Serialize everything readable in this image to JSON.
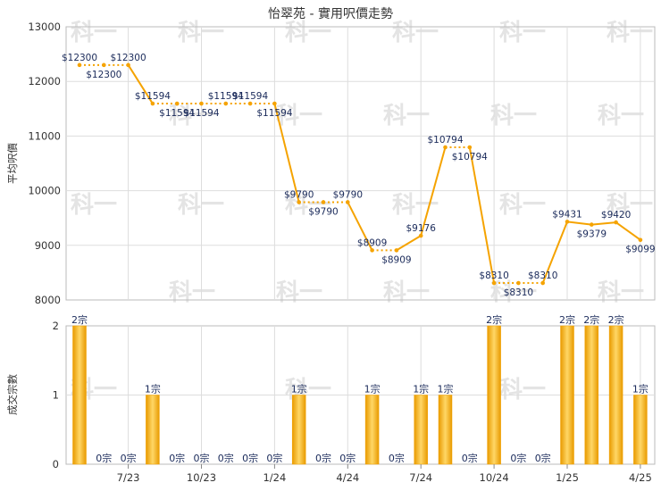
{
  "chart_data": [
    {
      "type": "line",
      "title": "怡翠苑 - 實用呎價走勢",
      "ylabel": "平均呎價",
      "ylim": [
        8000,
        13000
      ],
      "yticks": [
        8000,
        9000,
        10000,
        11000,
        12000,
        13000
      ],
      "line_color": "#f5a300",
      "points": [
        {
          "i": 0,
          "y": 12300,
          "label": "$12300"
        },
        {
          "i": 1,
          "y": 12300,
          "label": "$12300"
        },
        {
          "i": 2,
          "y": 12300,
          "label": "$12300"
        },
        {
          "i": 3,
          "y": 11594,
          "label": "$11594"
        },
        {
          "i": 4,
          "y": 11594,
          "label": "$11594"
        },
        {
          "i": 5,
          "y": 11594,
          "label": "$11594"
        },
        {
          "i": 6,
          "y": 11594,
          "label": "$11594"
        },
        {
          "i": 7,
          "y": 11594,
          "label": "$11594"
        },
        {
          "i": 8,
          "y": 11594,
          "label": "$11594"
        },
        {
          "i": 9,
          "y": 9790,
          "label": "$9790"
        },
        {
          "i": 10,
          "y": 9790,
          "label": "$9790"
        },
        {
          "i": 11,
          "y": 9790,
          "label": "$9790"
        },
        {
          "i": 12,
          "y": 8909,
          "label": "$8909"
        },
        {
          "i": 13,
          "y": 8909,
          "label": "$8909"
        },
        {
          "i": 14,
          "y": 9176,
          "label": "$9176"
        },
        {
          "i": 15,
          "y": 10794,
          "label": "$10794"
        },
        {
          "i": 16,
          "y": 10794,
          "label": "$10794"
        },
        {
          "i": 17,
          "y": 8310,
          "label": "$8310"
        },
        {
          "i": 18,
          "y": 8310,
          "label": "$8310"
        },
        {
          "i": 19,
          "y": 8310,
          "label": "$8310"
        },
        {
          "i": 20,
          "y": 9431,
          "label": "$9431"
        },
        {
          "i": 21,
          "y": 9379,
          "label": "$9379"
        },
        {
          "i": 22,
          "y": 9420,
          "label": "$9420"
        },
        {
          "i": 23,
          "y": 9099,
          "label": "$9099"
        }
      ]
    },
    {
      "type": "bar",
      "ylabel": "成交宗數",
      "ylim": [
        0,
        2
      ],
      "yticks": [
        0,
        1,
        2
      ],
      "bar_color": "#f5a300",
      "values": [
        2,
        0,
        0,
        1,
        0,
        0,
        0,
        0,
        0,
        1,
        0,
        0,
        1,
        0,
        1,
        1,
        0,
        2,
        0,
        0,
        2,
        2,
        2,
        1
      ],
      "labels": [
        "2宗",
        "0宗",
        "0宗",
        "1宗",
        "0宗",
        "0宗",
        "0宗",
        "0宗",
        "0宗",
        "1宗",
        "0宗",
        "0宗",
        "1宗",
        "0宗",
        "1宗",
        "1宗",
        "0宗",
        "2宗",
        "0宗",
        "0宗",
        "2宗",
        "2宗",
        "2宗",
        "1宗"
      ],
      "x_ticks": [
        {
          "i": 2,
          "label": "7/23"
        },
        {
          "i": 5,
          "label": "10/23"
        },
        {
          "i": 8,
          "label": "1/24"
        },
        {
          "i": 11,
          "label": "4/24"
        },
        {
          "i": 14,
          "label": "7/24"
        },
        {
          "i": 17,
          "label": "10/24"
        },
        {
          "i": 20,
          "label": "1/25"
        },
        {
          "i": 23,
          "label": "4/25"
        }
      ]
    }
  ],
  "watermark": "科一"
}
